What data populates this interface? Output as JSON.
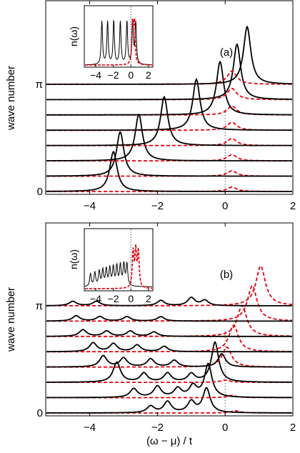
{
  "chart_data": [
    {
      "type": "line",
      "panel_label": "(a)",
      "ylabel": "wave number",
      "xlabel": "",
      "xlim": [
        -5.3,
        2
      ],
      "x_ticks": [
        "−4",
        "−2",
        "0",
        "2"
      ],
      "x_tick_values": [
        -4,
        -2,
        0,
        2
      ],
      "y_ticks": [
        "0",
        "π"
      ],
      "y_range": [
        0,
        3.1416
      ],
      "reference_line_x": 0,
      "curves": [
        {
          "k": 0.0,
          "peaks": [
            [
              -3.3,
              0.9
            ]
          ],
          "red_peaks": [
            [
              0.2,
              0.1
            ]
          ]
        },
        {
          "k": 0.449,
          "peaks": [
            [
              -3.1,
              1.0
            ]
          ],
          "red_peaks": [
            [
              0.2,
              0.12
            ]
          ]
        },
        {
          "k": 0.898,
          "peaks": [
            [
              -2.55,
              1.05
            ]
          ],
          "red_peaks": [
            [
              0.2,
              0.14
            ]
          ]
        },
        {
          "k": 1.346,
          "peaks": [
            [
              -1.8,
              1.1
            ]
          ],
          "red_peaks": [
            [
              0.2,
              0.16
            ]
          ]
        },
        {
          "k": 1.795,
          "peaks": [
            [
              -0.85,
              1.15
            ]
          ],
          "red_peaks": [
            [
              0.2,
              0.18
            ]
          ]
        },
        {
          "k": 2.244,
          "peaks": [
            [
              -0.15,
              1.2
            ]
          ],
          "red_peaks": [
            [
              0.2,
              0.2
            ]
          ]
        },
        {
          "k": 2.693,
          "peaks": [
            [
              0.35,
              1.25
            ]
          ],
          "red_peaks": [
            [
              0.2,
              0.25
            ]
          ]
        },
        {
          "k": 3.142,
          "peaks": [
            [
              0.65,
              1.3
            ]
          ],
          "red_peaks": [
            [
              0.2,
              0.3
            ]
          ]
        }
      ],
      "inset": {
        "ylabel": "n(ω)",
        "x_ticks": [
          "−4",
          "−2",
          "0",
          "2"
        ],
        "x_tick_values": [
          -4,
          -2,
          0,
          2
        ],
        "xlim": [
          -5.3,
          2.5
        ],
        "black_peaks": [
          -3.3,
          -2.65,
          -1.95,
          -1.2,
          -0.45,
          0.2,
          0.55
        ],
        "red_peaks": [
          0.2,
          0.4
        ]
      }
    },
    {
      "type": "line",
      "panel_label": "(b)",
      "ylabel": "wave number",
      "xlabel": "(ω − μ) / t",
      "xlim": [
        -5.3,
        2
      ],
      "x_ticks": [
        "−4",
        "−2",
        "0",
        "2"
      ],
      "x_tick_values": [
        -4,
        -2,
        0,
        2
      ],
      "y_ticks": [
        "0",
        "π"
      ],
      "y_range": [
        0,
        3.1416
      ],
      "reference_line_x": 0,
      "curves": [
        {
          "k": 0.0,
          "peaks": [
            [
              -2.2,
              0.15
            ],
            [
              -1.7,
              0.25
            ],
            [
              -1.0,
              0.25
            ],
            [
              -0.55,
              0.55
            ]
          ],
          "red_peaks": [
            [
              0.3,
              0.05
            ]
          ]
        },
        {
          "k": 0.449,
          "peaks": [
            [
              -2.7,
              0.2
            ],
            [
              -2.0,
              0.25
            ],
            [
              -1.4,
              0.2
            ],
            [
              -0.95,
              0.25
            ],
            [
              -0.5,
              0.75
            ]
          ],
          "red_peaks": [
            [
              0.2,
              0.05
            ]
          ]
        },
        {
          "k": 0.898,
          "peaks": [
            [
              -3.2,
              0.45
            ],
            [
              -2.4,
              0.2
            ],
            [
              -1.7,
              0.2
            ],
            [
              -1.0,
              0.18
            ],
            [
              -0.3,
              0.9
            ]
          ],
          "red_peaks": [
            [
              0.0,
              0.05
            ]
          ]
        },
        {
          "k": 1.346,
          "peaks": [
            [
              -3.6,
              0.25
            ],
            [
              -3.0,
              0.2
            ],
            [
              -2.2,
              0.18
            ],
            [
              -1.5,
              0.15
            ],
            [
              -0.1,
              0.3
            ]
          ],
          "red_peaks": [
            [
              0.05,
              0.45
            ]
          ]
        },
        {
          "k": 1.795,
          "peaks": [
            [
              -3.9,
              0.2
            ],
            [
              -3.3,
              0.18
            ],
            [
              -2.6,
              0.15
            ],
            [
              -1.8,
              0.12
            ]
          ],
          "red_peaks": [
            [
              0.25,
              0.6
            ]
          ]
        },
        {
          "k": 2.244,
          "peaks": [
            [
              -4.2,
              0.15
            ],
            [
              -3.5,
              0.12
            ],
            [
              -2.8,
              0.12
            ],
            [
              -2.1,
              0.1
            ]
          ],
          "red_peaks": [
            [
              0.5,
              0.7
            ]
          ]
        },
        {
          "k": 2.693,
          "peaks": [
            [
              -4.4,
              0.12
            ],
            [
              -3.7,
              0.1
            ],
            [
              -2.9,
              0.1
            ],
            [
              -1.9,
              0.1
            ]
          ],
          "red_peaks": [
            [
              0.8,
              0.8
            ]
          ]
        },
        {
          "k": 3.142,
          "peaks": [
            [
              -4.5,
              0.1
            ],
            [
              -3.8,
              0.1
            ],
            [
              -1.9,
              0.12
            ],
            [
              -1.0,
              0.18
            ],
            [
              -0.6,
              0.12
            ]
          ],
          "red_peaks": [
            [
              1.05,
              0.9
            ]
          ]
        }
      ],
      "inset": {
        "ylabel": "n(ω)",
        "x_ticks": [
          "−4",
          "−2",
          "0",
          "2"
        ],
        "x_tick_values": [
          -4,
          -2,
          0,
          2
        ],
        "xlim": [
          -5.3,
          2.5
        ],
        "black_peaks": [
          -4.6,
          -4.1,
          -3.6,
          -3.2,
          -2.8,
          -2.4,
          -2.0,
          -1.6,
          -1.2,
          -0.8,
          -0.45
        ],
        "red_peaks": [
          0.25,
          0.55,
          0.85
        ]
      }
    }
  ]
}
